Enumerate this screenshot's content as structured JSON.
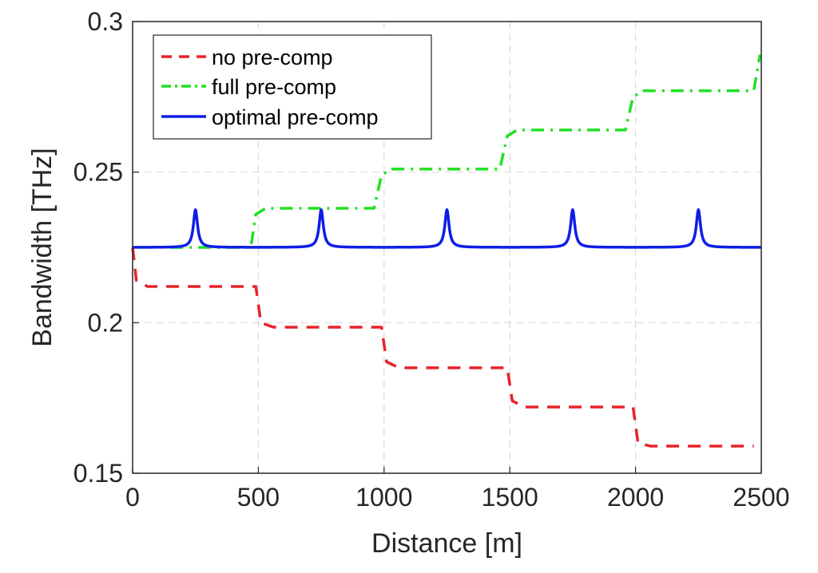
{
  "chart_data": {
    "type": "line",
    "title": "",
    "xlabel": "Distance [m]",
    "ylabel": "Bandwidth [THz]",
    "xlim": [
      0,
      2500
    ],
    "ylim": [
      0.15,
      0.3
    ],
    "xticks": [
      0,
      500,
      1000,
      1500,
      2000,
      2500
    ],
    "xtick_labels": [
      "0",
      "500",
      "1000",
      "1500",
      "2000",
      "2500"
    ],
    "yticks": [
      0.15,
      0.2,
      0.25,
      0.3
    ],
    "ytick_labels": [
      "0.15",
      "0.2",
      "0.25",
      "0.3"
    ],
    "grid": true,
    "legend_position": "top-left",
    "series": [
      {
        "name": "no pre-comp",
        "color": "#e8222a",
        "style": "dashed",
        "x": [
          0,
          15,
          60,
          490,
          510,
          560,
          990,
          1010,
          1060,
          1490,
          1510,
          1560,
          1990,
          2010,
          2060,
          2470
        ],
        "y": [
          0.225,
          0.214,
          0.212,
          0.212,
          0.2,
          0.1985,
          0.1985,
          0.187,
          0.185,
          0.185,
          0.174,
          0.172,
          0.172,
          0.16,
          0.159,
          0.159
        ]
      },
      {
        "name": "full pre-comp",
        "color": "#22e022",
        "style": "dashdot",
        "x": [
          150,
          470,
          490,
          530,
          960,
          990,
          1030,
          1460,
          1490,
          1530,
          1960,
          1990,
          2030,
          2470,
          2495
        ],
        "y": [
          0.225,
          0.225,
          0.236,
          0.238,
          0.238,
          0.249,
          0.251,
          0.251,
          0.262,
          0.264,
          0.264,
          0.275,
          0.277,
          0.277,
          0.289
        ]
      },
      {
        "name": "optimal pre-comp",
        "color": "#0d1ee8",
        "style": "solid",
        "baseline": 0.225,
        "peak": 0.2375,
        "peaks_at": [
          250,
          750,
          1250,
          1750,
          2250
        ],
        "x": [
          0,
          250,
          750,
          1250,
          1750,
          2250,
          2500
        ],
        "y": [
          0.225,
          0.2375,
          0.2375,
          0.2375,
          0.2375,
          0.2375,
          0.225
        ]
      }
    ]
  }
}
